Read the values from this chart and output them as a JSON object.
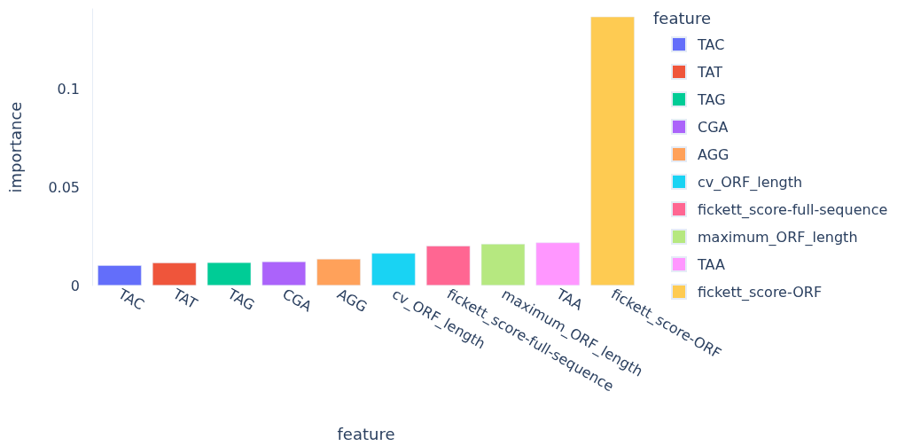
{
  "chart_data": {
    "type": "bar",
    "xlabel": "feature",
    "ylabel": "importance",
    "legend_title": "feature",
    "categories": [
      "TAC",
      "TAT",
      "TAG",
      "CGA",
      "AGG",
      "cv_ORF_length",
      "fickett_score-full-sequence",
      "maximum_ORF_length",
      "TAA",
      "fickett_score-ORF"
    ],
    "series": [
      {
        "name": "TAC",
        "color": "#636efa",
        "values": [
          0.0103,
          null,
          null,
          null,
          null,
          null,
          null,
          null,
          null,
          null
        ]
      },
      {
        "name": "TAT",
        "color": "#ef553b",
        "values": [
          null,
          0.0116,
          null,
          null,
          null,
          null,
          null,
          null,
          null,
          null
        ]
      },
      {
        "name": "TAG",
        "color": "#00cc96",
        "values": [
          null,
          null,
          0.0118,
          null,
          null,
          null,
          null,
          null,
          null,
          null
        ]
      },
      {
        "name": "CGA",
        "color": "#ab63fa",
        "values": [
          null,
          null,
          null,
          0.0122,
          null,
          null,
          null,
          null,
          null,
          null
        ]
      },
      {
        "name": "AGG",
        "color": "#ffa15a",
        "values": [
          null,
          null,
          null,
          null,
          0.0136,
          null,
          null,
          null,
          null,
          null
        ]
      },
      {
        "name": "cv_ORF_length",
        "color": "#19d3f3",
        "values": [
          null,
          null,
          null,
          null,
          null,
          0.0165,
          null,
          null,
          null,
          null
        ]
      },
      {
        "name": "fickett_score-full-sequence",
        "color": "#ff6692",
        "values": [
          null,
          null,
          null,
          null,
          null,
          null,
          0.0202,
          null,
          null,
          null
        ]
      },
      {
        "name": "maximum_ORF_length",
        "color": "#b6e880",
        "values": [
          null,
          null,
          null,
          null,
          null,
          null,
          null,
          0.0212,
          null,
          null
        ]
      },
      {
        "name": "TAA",
        "color": "#ff97ff",
        "values": [
          null,
          null,
          null,
          null,
          null,
          null,
          null,
          null,
          0.0219,
          null
        ]
      },
      {
        "name": "fickett_score-ORF",
        "color": "#fecb52",
        "values": [
          null,
          null,
          null,
          null,
          null,
          null,
          null,
          null,
          null,
          0.137
        ]
      }
    ],
    "ylim": [
      0,
      0.141
    ],
    "yticks": [
      0,
      0.05,
      0.1
    ],
    "grid": false,
    "legend": "right"
  }
}
